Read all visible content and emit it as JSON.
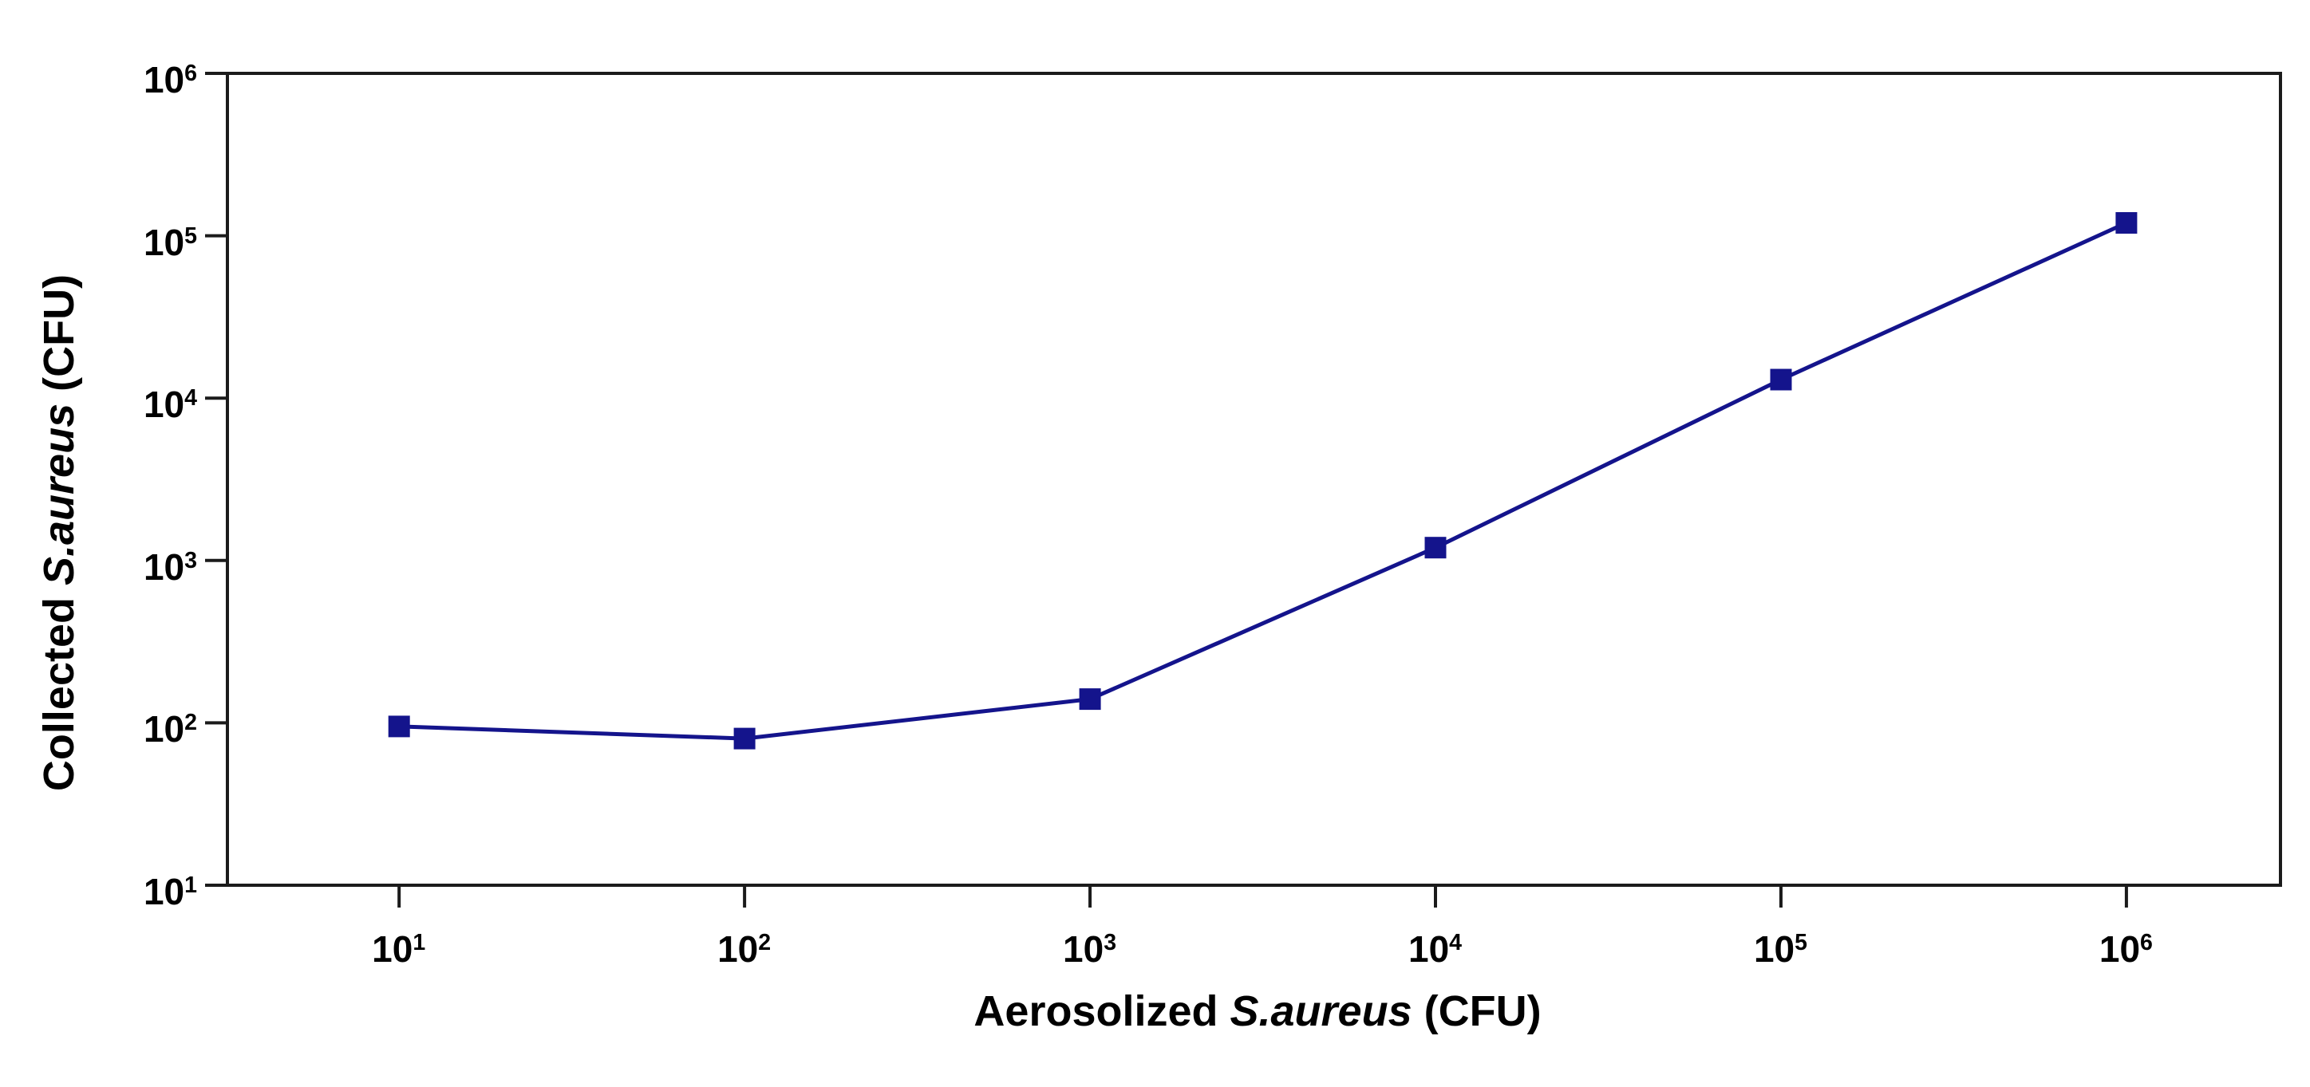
{
  "figure": {
    "background_color": "#ffffff",
    "frame_color": "#1b1b1b"
  },
  "chart_data": {
    "type": "line",
    "xscale": "log",
    "yscale": "log",
    "grid": false,
    "legend": null,
    "xlabel": "Aerosolized S.aureus (CFU)",
    "ylabel": "Collected S.aureus (CFU)",
    "xlim_log": [
      0.503,
      6.446
    ],
    "ylim_log": [
      1,
      6
    ],
    "x_axis": {
      "label_parts": {
        "prefix": "Aerosolized ",
        "italic": "S.aureus",
        "suffix": " (CFU)"
      },
      "ticks": [
        {
          "base": "10",
          "exp": "1",
          "log": 1
        },
        {
          "base": "10",
          "exp": "2",
          "log": 2
        },
        {
          "base": "10",
          "exp": "3",
          "log": 3
        },
        {
          "base": "10",
          "exp": "4",
          "log": 4
        },
        {
          "base": "10",
          "exp": "5",
          "log": 5
        },
        {
          "base": "10",
          "exp": "6",
          "log": 6
        }
      ]
    },
    "y_axis": {
      "label_parts": {
        "prefix": "Collected ",
        "italic": "S.aureus",
        "suffix": " (CFU)"
      },
      "ticks": [
        {
          "base": "10",
          "exp": "1",
          "log": 1
        },
        {
          "base": "10",
          "exp": "2",
          "log": 2
        },
        {
          "base": "10",
          "exp": "3",
          "log": 3
        },
        {
          "base": "10",
          "exp": "4",
          "log": 4
        },
        {
          "base": "10",
          "exp": "5",
          "log": 5
        },
        {
          "base": "10",
          "exp": "6",
          "log": 6
        }
      ]
    },
    "series": [
      {
        "name": "Collected S.aureus",
        "marker": "square",
        "color": "#14148C",
        "x": [
          10,
          100,
          1000,
          10000,
          100000,
          1000000
        ],
        "y": [
          95,
          80,
          140,
          1200,
          13000,
          120000
        ]
      }
    ]
  }
}
